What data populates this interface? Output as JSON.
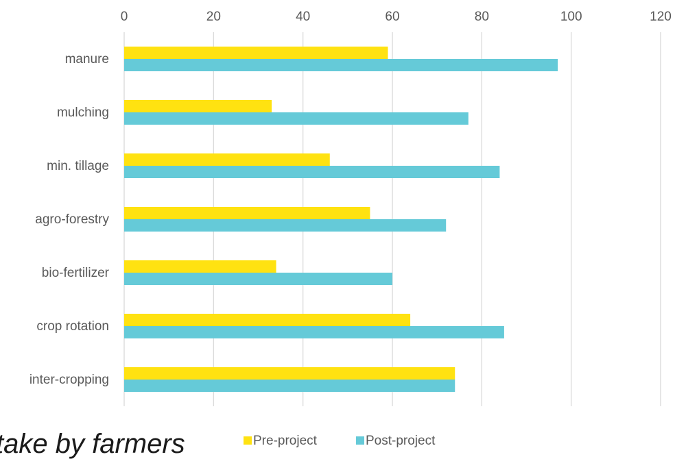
{
  "caption": "take by farmers",
  "chart_data": {
    "type": "bar",
    "orientation": "horizontal",
    "title": "",
    "xlabel": "",
    "ylabel": "",
    "xlim": [
      0,
      120
    ],
    "x_ticks": [
      0,
      20,
      40,
      60,
      80,
      100,
      120
    ],
    "x_axis_position": "top",
    "grid": true,
    "legend_position": "bottom",
    "categories": [
      "manure",
      "mulching",
      "min. tillage",
      "agro-forestry",
      "bio-fertilizer",
      "crop rotation",
      "inter-cropping"
    ],
    "series": [
      {
        "name": "Pre-project",
        "color": "#FFE211",
        "values": [
          59,
          33,
          46,
          55,
          34,
          64,
          74
        ]
      },
      {
        "name": "Post-project",
        "color": "#65CAD8",
        "values": [
          97,
          77,
          84,
          72,
          60,
          85,
          74
        ]
      }
    ]
  }
}
